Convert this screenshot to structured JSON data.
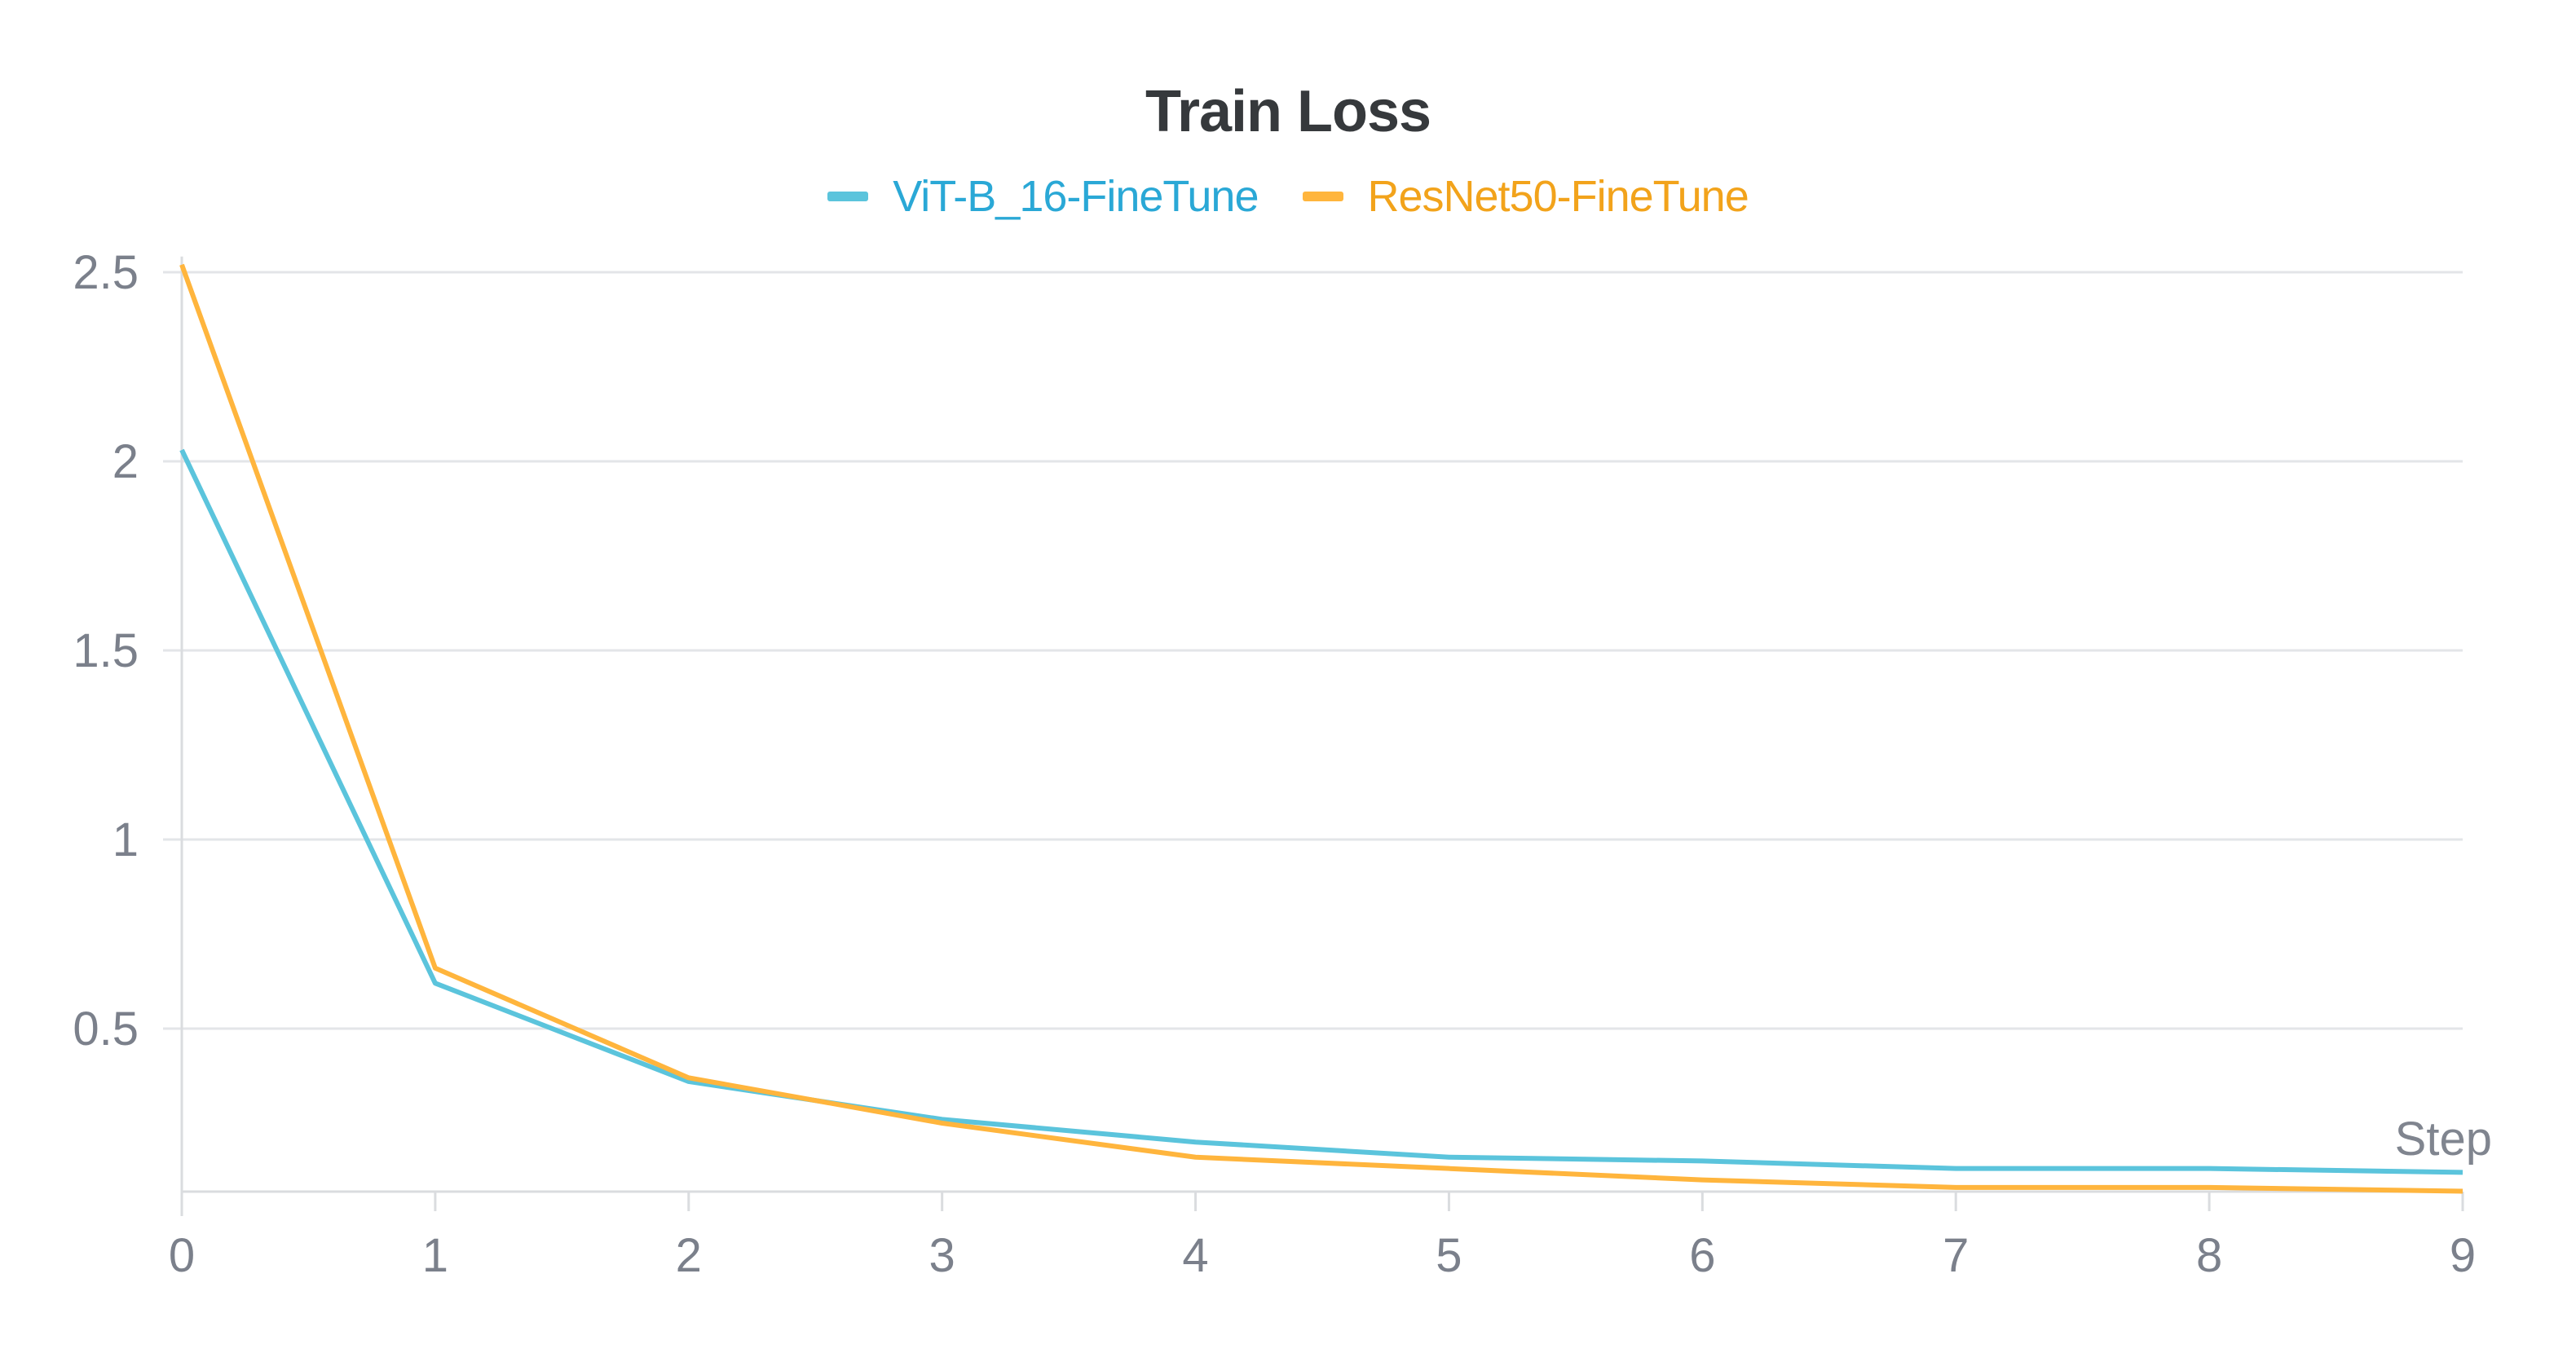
{
  "chart": {
    "title": "Train Loss",
    "x_axis_title": "Step",
    "legend": [
      {
        "label": "ViT-B_16-FineTune",
        "swatch_color": "#5bc4dc",
        "text_color": "#2aa8d6"
      },
      {
        "label": "ResNet50-FineTune",
        "swatch_color": "#ffb53d",
        "text_color": "#f2a31b"
      }
    ],
    "colors": {
      "grid": "#e3e5e8",
      "axis": "#dadcdf",
      "tick_text": "#7b808b",
      "title": "#36393c"
    }
  },
  "chart_data": {
    "type": "line",
    "title": "Train Loss",
    "xlabel": "Step",
    "ylabel": "",
    "x": [
      0,
      1,
      2,
      3,
      4,
      5,
      6,
      7,
      8,
      9
    ],
    "x_tick_labels": [
      "0",
      "1",
      "2",
      "3",
      "4",
      "5",
      "6",
      "7",
      "8",
      "9"
    ],
    "y_ticks": [
      0.5,
      1,
      1.5,
      2,
      2.5
    ],
    "y_tick_labels": [
      "0.5",
      "1",
      "1.5",
      "2",
      "2.5"
    ],
    "xlim": [
      0,
      9
    ],
    "ylim": [
      0.07,
      2.52
    ],
    "grid": true,
    "legend_position": "top-center",
    "series": [
      {
        "name": "ViT-B_16-FineTune",
        "color": "#5bc4dc",
        "values": [
          2.03,
          0.62,
          0.36,
          0.26,
          0.2,
          0.16,
          0.15,
          0.13,
          0.13,
          0.12
        ]
      },
      {
        "name": "ResNet50-FineTune",
        "color": "#ffb53d",
        "values": [
          2.52,
          0.66,
          0.37,
          0.25,
          0.16,
          0.13,
          0.1,
          0.08,
          0.08,
          0.07
        ]
      }
    ]
  }
}
